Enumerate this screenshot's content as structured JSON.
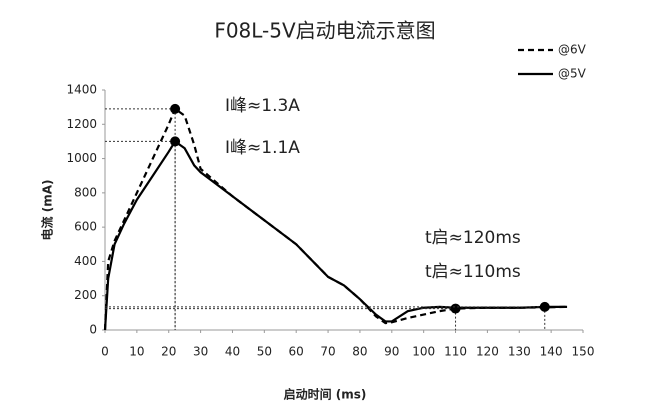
{
  "chart_data": {
    "type": "line",
    "title": "F08L-5V启动电流示意图",
    "x_label": "启动时间 (ms)",
    "y_label": "电流 (mA)",
    "x": [
      0,
      1,
      3,
      6,
      10,
      15,
      20,
      22,
      25,
      28,
      30,
      40,
      50,
      60,
      70,
      75,
      80,
      85,
      88,
      90,
      95,
      100,
      105,
      110,
      120,
      130,
      138,
      145
    ],
    "series": [
      {
        "name": "@6V",
        "color": "#000000",
        "dash": true,
        "values": [
          0,
          400,
          520,
          640,
          800,
          1000,
          1200,
          1290,
          1250,
          1080,
          940,
          780,
          640,
          500,
          310,
          260,
          180,
          80,
          40,
          45,
          70,
          90,
          110,
          125,
          130,
          130,
          132,
          135
        ]
      },
      {
        "name": "@5V",
        "color": "#000000",
        "dash": false,
        "values": [
          0,
          300,
          500,
          620,
          760,
          900,
          1040,
          1100,
          1060,
          960,
          920,
          780,
          640,
          500,
          310,
          260,
          180,
          90,
          50,
          50,
          110,
          130,
          135,
          130,
          130,
          130,
          135,
          135
        ]
      }
    ],
    "markers": [
      {
        "x": 22,
        "y": 1290
      },
      {
        "x": 22,
        "y": 1100
      },
      {
        "x": 110,
        "y": 125
      },
      {
        "x": 138,
        "y": 135
      }
    ],
    "annotations": [
      "I峰≈1.3A",
      "I峰≈1.1A",
      "t启≈120ms",
      "t启≈110ms"
    ],
    "xlim": [
      0,
      150
    ],
    "xticks": [
      0,
      10,
      20,
      30,
      40,
      50,
      60,
      70,
      80,
      90,
      100,
      110,
      120,
      130,
      140,
      150
    ],
    "ylim": [
      0,
      1400
    ],
    "yticks": [
      0,
      200,
      400,
      600,
      800,
      1000,
      1200,
      1400
    ],
    "grid": false,
    "legend": "top-right"
  }
}
